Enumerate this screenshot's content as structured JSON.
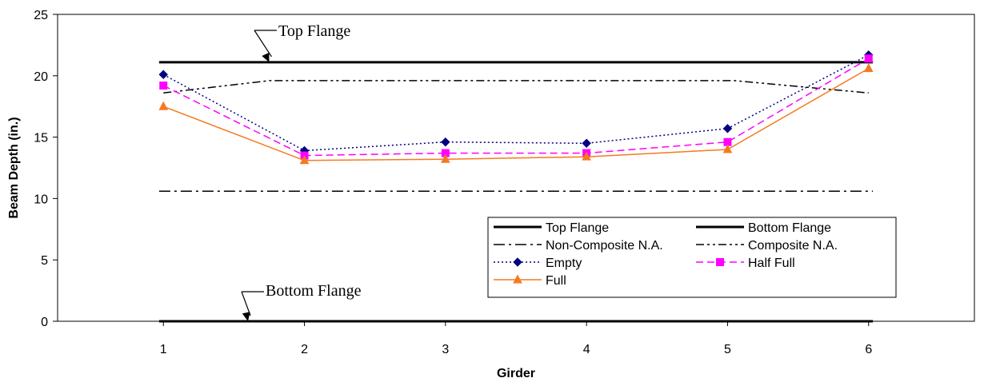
{
  "chart_data": {
    "type": "line",
    "title": "",
    "xlabel": "Girder",
    "ylabel": "Beam Depth (in.)",
    "x": [
      1,
      2,
      3,
      4,
      5,
      6
    ],
    "ylim": [
      0,
      25
    ],
    "yticks": [
      0,
      5,
      10,
      15,
      20,
      25
    ],
    "grid": false,
    "legend_position": "bottom-right",
    "series": [
      {
        "name": "Top Flange",
        "values": [
          21.1,
          21.1,
          21.1,
          21.1,
          21.1,
          21.1
        ],
        "color": "#000000",
        "dash": "solid",
        "marker": "none"
      },
      {
        "name": "Bottom Flange",
        "values": [
          0,
          0,
          0,
          0,
          0,
          0
        ],
        "color": "#000000",
        "dash": "solid",
        "marker": "none"
      },
      {
        "name": "Non-Composite N.A.",
        "values": [
          10.6,
          10.6,
          10.6,
          10.6,
          10.6,
          10.6
        ],
        "color": "#000000",
        "dash": "dashdot",
        "marker": "none"
      },
      {
        "name": "Composite N.A.",
        "values": [
          18.6,
          19.6,
          19.6,
          19.6,
          19.6,
          18.6
        ],
        "color": "#000000",
        "dash": "dashdotdot",
        "marker": "none"
      },
      {
        "name": "Empty",
        "values": [
          20.1,
          13.9,
          14.6,
          14.5,
          15.7,
          21.7
        ],
        "color": "#000080",
        "dash": "dotted",
        "marker": "diamond"
      },
      {
        "name": "Half Full",
        "values": [
          19.2,
          13.5,
          13.7,
          13.7,
          14.6,
          21.4
        ],
        "color": "#ff00ff",
        "dash": "dashed",
        "marker": "square"
      },
      {
        "name": "Full",
        "values": [
          17.5,
          13.1,
          13.2,
          13.4,
          14.0,
          20.6
        ],
        "color": "#f47a20",
        "dash": "solid",
        "marker": "triangle"
      }
    ],
    "annotations": [
      {
        "text": "Top Flange",
        "arrow_to": [
          1.75,
          21.1
        ]
      },
      {
        "text": "Bottom Flange",
        "arrow_to": [
          1.6,
          0
        ]
      }
    ]
  }
}
